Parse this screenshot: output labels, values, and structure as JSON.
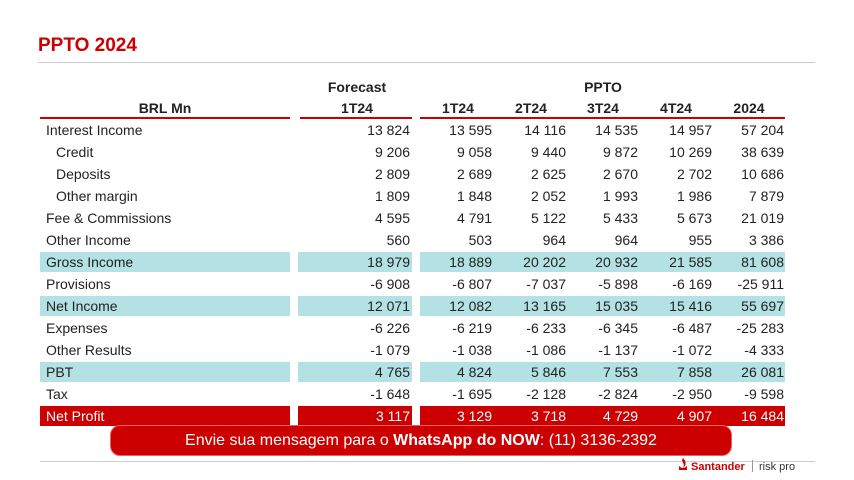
{
  "title": "PPTO 2024",
  "table": {
    "group_headers": [
      "Forecast",
      "PPTO"
    ],
    "columns": [
      "BRL Mn",
      "1T24",
      "1T24",
      "2T24",
      "3T24",
      "4T24",
      "2024"
    ],
    "rows": [
      {
        "label": "Interest Income",
        "cells": [
          "13 824",
          "13 595",
          "14 116",
          "14 535",
          "14 957",
          "57 204"
        ]
      },
      {
        "label": "Credit",
        "indent": true,
        "cells": [
          "9 206",
          "9 058",
          "9 440",
          "9 872",
          "10 269",
          "38 639"
        ]
      },
      {
        "label": "Deposits",
        "indent": true,
        "cells": [
          "2 809",
          "2 689",
          "2 625",
          "2 670",
          "2 702",
          "10 686"
        ]
      },
      {
        "label": "Other margin",
        "indent": true,
        "cells": [
          "1 809",
          "1 848",
          "2 052",
          "1 993",
          "1 986",
          "7 879"
        ]
      },
      {
        "label": "Fee & Commissions",
        "cells": [
          "4 595",
          "4 791",
          "5 122",
          "5 433",
          "5 673",
          "21 019"
        ]
      },
      {
        "label": "Other Income",
        "cells": [
          "560",
          "503",
          "964",
          "964",
          "955",
          "3 386"
        ]
      },
      {
        "label": "Gross Income",
        "highlight": "#b3e1e4",
        "cells": [
          "18 979",
          "18 889",
          "20 202",
          "20 932",
          "21 585",
          "81 608"
        ]
      },
      {
        "label": "Provisions",
        "cells": [
          "-6 908",
          "-6 807",
          "-7 037",
          "-5 898",
          "-6 169",
          "-25 911"
        ]
      },
      {
        "label": "Net Income",
        "highlight": "#b3e1e4",
        "cells": [
          "12 071",
          "12 082",
          "13 165",
          "15 035",
          "15 416",
          "55 697"
        ]
      },
      {
        "label": "Expenses",
        "cells": [
          "-6 226",
          "-6 219",
          "-6 233",
          "-6 345",
          "-6 487",
          "-25 283"
        ]
      },
      {
        "label": "Other Results",
        "cells": [
          "-1 079",
          "-1 038",
          "-1 086",
          "-1 137",
          "-1 072",
          "-4 333"
        ]
      },
      {
        "label": "PBT",
        "highlight": "#b3e1e4",
        "cells": [
          "4 765",
          "4 824",
          "5 846",
          "7 553",
          "7 858",
          "26 081"
        ]
      },
      {
        "label": "Tax",
        "cells": [
          "-1 648",
          "-1 695",
          "-2 128",
          "-2 824",
          "-2 950",
          "-9 598"
        ]
      },
      {
        "label": "Net Profit",
        "highlight": "#cc0000",
        "cells": [
          "3 117",
          "3 129",
          "3 718",
          "4 729",
          "4 907",
          "16 484"
        ]
      }
    ]
  },
  "banner": {
    "text": "Envie sua mensagem para o ",
    "bold": "WhatsApp do NOW",
    "tail": ": (11) 3136-2392"
  },
  "footer": {
    "brand": "Santander",
    "product": "risk pro"
  }
}
